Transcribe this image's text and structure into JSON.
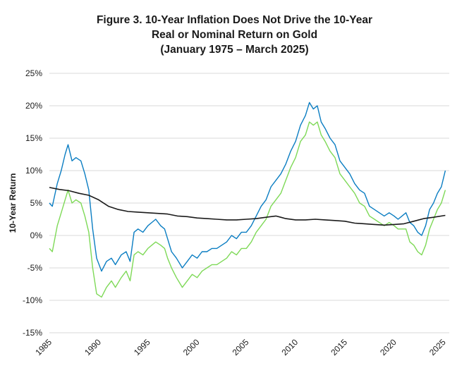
{
  "chart_data": {
    "type": "line",
    "title": [
      "Figure 3. 10-Year Inflation Does Not Drive the 10-Year",
      "Real or Nominal Return on Gold",
      "(January 1975 – March 2025)"
    ],
    "ylabel": "10-Year Return",
    "xlabel": "",
    "ylim": [
      -15,
      25
    ],
    "xlim": [
      1985,
      2025.6
    ],
    "yticks": [
      -15,
      -10,
      -5,
      0,
      5,
      10,
      15,
      20,
      25
    ],
    "ytick_labels": [
      "-15%",
      "-10%",
      "-5%",
      "0%",
      "5%",
      "10%",
      "15%",
      "20%",
      "25%"
    ],
    "xticks": [
      1985,
      1990,
      1995,
      2000,
      2005,
      2010,
      2015,
      2020,
      2025
    ],
    "xtick_labels": [
      "1985",
      "1990",
      "1995",
      "2000",
      "2005",
      "2010",
      "2015",
      "2020",
      "2025"
    ],
    "grid": "horizontal",
    "legend": "none",
    "series": [
      {
        "color": "#0a7dc2",
        "x": [
          1985.0,
          1985.3,
          1985.8,
          1986.2,
          1986.6,
          1986.9,
          1987.3,
          1987.7,
          1988.2,
          1988.6,
          1989.0,
          1989.4,
          1989.8,
          1990.3,
          1990.8,
          1991.3,
          1991.7,
          1992.3,
          1992.8,
          1993.2,
          1993.6,
          1994.0,
          1994.5,
          1995.0,
          1995.4,
          1995.8,
          1996.3,
          1996.7,
          1997.0,
          1997.4,
          1997.9,
          1998.5,
          1999.0,
          1999.5,
          2000.0,
          2000.5,
          2001.0,
          2001.5,
          2002.0,
          2002.5,
          2003.0,
          2003.5,
          2004.0,
          2004.5,
          2005.0,
          2005.5,
          2006.0,
          2006.5,
          2007.0,
          2007.5,
          2008.0,
          2008.5,
          2009.0,
          2009.5,
          2010.0,
          2010.5,
          2011.0,
          2011.4,
          2011.8,
          2012.2,
          2012.6,
          2013.0,
          2013.5,
          2014.0,
          2014.5,
          2015.0,
          2015.5,
          2016.0,
          2016.5,
          2017.0,
          2017.5,
          2018.0,
          2018.5,
          2019.0,
          2019.5,
          2020.0,
          2020.4,
          2020.8,
          2021.2,
          2021.6,
          2022.0,
          2022.4,
          2022.8,
          2023.2,
          2023.6,
          2024.0,
          2024.4,
          2024.8,
          2025.2
        ],
        "values": [
          5.0,
          4.5,
          8.0,
          10.0,
          12.5,
          14.0,
          11.5,
          12.0,
          11.5,
          9.5,
          7.0,
          1.0,
          -3.5,
          -5.5,
          -4.0,
          -3.5,
          -4.5,
          -3.0,
          -2.5,
          -4.0,
          0.5,
          1.0,
          0.5,
          1.5,
          2.0,
          2.5,
          1.5,
          1.0,
          -0.5,
          -2.5,
          -3.5,
          -5.0,
          -4.0,
          -3.0,
          -3.5,
          -2.5,
          -2.5,
          -2.0,
          -2.0,
          -1.5,
          -1.0,
          0.0,
          -0.5,
          0.5,
          0.5,
          1.5,
          3.0,
          4.5,
          5.5,
          7.5,
          8.5,
          9.5,
          11.0,
          13.0,
          14.5,
          17.0,
          18.5,
          20.5,
          19.5,
          20.0,
          17.5,
          16.5,
          15.0,
          14.0,
          11.5,
          10.5,
          9.5,
          8.0,
          7.0,
          6.5,
          4.5,
          4.0,
          3.5,
          3.0,
          3.5,
          3.0,
          2.5,
          3.0,
          3.5,
          2.0,
          1.5,
          0.5,
          0.0,
          1.5,
          4.0,
          5.0,
          6.5,
          7.5,
          10.0
        ]
      },
      {
        "color": "#7ed957",
        "x": [
          1985.0,
          1985.3,
          1985.8,
          1986.2,
          1986.6,
          1986.9,
          1987.3,
          1987.7,
          1988.2,
          1988.6,
          1989.0,
          1989.4,
          1989.8,
          1990.3,
          1990.8,
          1991.3,
          1991.7,
          1992.3,
          1992.8,
          1993.2,
          1993.6,
          1994.0,
          1994.5,
          1995.0,
          1995.4,
          1995.8,
          1996.3,
          1996.7,
          1997.0,
          1997.4,
          1997.9,
          1998.5,
          1999.0,
          1999.5,
          2000.0,
          2000.5,
          2001.0,
          2001.5,
          2002.0,
          2002.5,
          2003.0,
          2003.5,
          2004.0,
          2004.5,
          2005.0,
          2005.5,
          2006.0,
          2006.5,
          2007.0,
          2007.5,
          2008.0,
          2008.5,
          2009.0,
          2009.5,
          2010.0,
          2010.5,
          2011.0,
          2011.4,
          2011.8,
          2012.2,
          2012.6,
          2013.0,
          2013.5,
          2014.0,
          2014.5,
          2015.0,
          2015.5,
          2016.0,
          2016.5,
          2017.0,
          2017.5,
          2018.0,
          2018.5,
          2019.0,
          2019.5,
          2020.0,
          2020.4,
          2020.8,
          2021.2,
          2021.6,
          2022.0,
          2022.4,
          2022.8,
          2023.2,
          2023.6,
          2024.0,
          2024.4,
          2024.8,
          2025.2
        ],
        "values": [
          -2.0,
          -2.5,
          1.5,
          3.5,
          5.5,
          7.0,
          5.0,
          5.5,
          5.0,
          3.0,
          0.5,
          -5.0,
          -9.0,
          -9.5,
          -8.0,
          -7.0,
          -8.0,
          -6.5,
          -5.5,
          -7.0,
          -3.0,
          -2.5,
          -3.0,
          -2.0,
          -1.5,
          -1.0,
          -1.5,
          -2.0,
          -3.5,
          -5.0,
          -6.5,
          -8.0,
          -7.0,
          -6.0,
          -6.5,
          -5.5,
          -5.0,
          -4.5,
          -4.5,
          -4.0,
          -3.5,
          -2.5,
          -3.0,
          -2.0,
          -2.0,
          -1.0,
          0.5,
          1.5,
          2.5,
          4.5,
          5.5,
          6.5,
          8.5,
          10.5,
          12.0,
          14.5,
          15.5,
          17.5,
          17.0,
          17.5,
          15.5,
          14.5,
          13.0,
          12.0,
          9.5,
          8.5,
          7.5,
          6.5,
          5.0,
          4.5,
          3.0,
          2.5,
          2.0,
          1.5,
          2.0,
          1.5,
          1.0,
          1.0,
          1.0,
          -1.0,
          -1.5,
          -2.5,
          -3.0,
          -1.5,
          1.0,
          2.5,
          4.0,
          5.0,
          7.0
        ]
      },
      {
        "color": "#1a1a1a",
        "x": [
          1985.0,
          1986.0,
          1987.0,
          1988.0,
          1989.0,
          1990.0,
          1991.0,
          1992.0,
          1993.0,
          1994.0,
          1995.0,
          1996.0,
          1997.0,
          1998.0,
          1999.0,
          2000.0,
          2001.0,
          2002.0,
          2003.0,
          2004.0,
          2005.0,
          2006.0,
          2007.0,
          2008.0,
          2008.5,
          2009.0,
          2010.0,
          2011.0,
          2012.0,
          2013.0,
          2014.0,
          2015.0,
          2016.0,
          2017.0,
          2018.0,
          2019.0,
          2020.0,
          2021.0,
          2022.0,
          2023.0,
          2024.0,
          2025.2
        ],
        "values": [
          7.4,
          7.1,
          6.9,
          6.5,
          6.2,
          5.5,
          4.5,
          4.0,
          3.7,
          3.6,
          3.5,
          3.4,
          3.3,
          3.0,
          2.9,
          2.7,
          2.6,
          2.5,
          2.4,
          2.4,
          2.5,
          2.6,
          2.8,
          3.0,
          2.8,
          2.6,
          2.4,
          2.4,
          2.5,
          2.4,
          2.3,
          2.2,
          1.9,
          1.8,
          1.7,
          1.6,
          1.7,
          1.8,
          2.2,
          2.6,
          2.8,
          3.1
        ]
      }
    ]
  }
}
